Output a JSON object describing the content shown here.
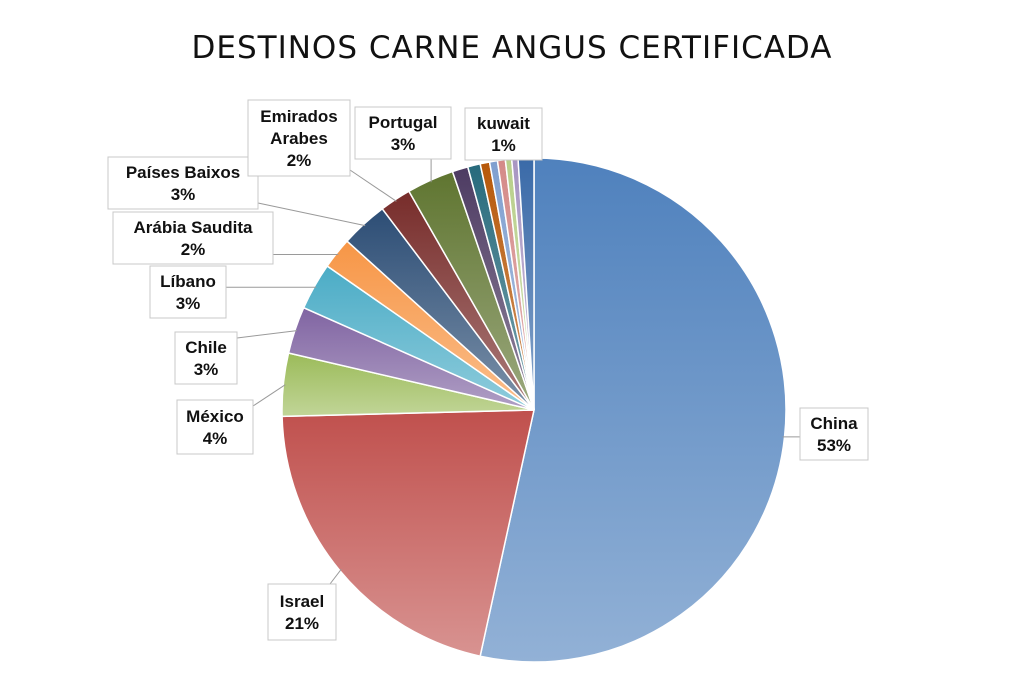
{
  "chart_data": {
    "type": "pie",
    "title": "DESTINOS CARNE ANGUS CERTIFICADA",
    "slices": [
      {
        "name": "China",
        "value": 53,
        "label": "53%",
        "color": "#4f81bd"
      },
      {
        "name": "Israel",
        "value": 21,
        "label": "21%",
        "color": "#c0504d"
      },
      {
        "name": "México",
        "value": 4,
        "label": "4%",
        "color": "#9bbb59"
      },
      {
        "name": "Chile",
        "value": 3,
        "label": "3%",
        "color": "#8064a2"
      },
      {
        "name": "Líbano",
        "value": 3,
        "label": "3%",
        "color": "#4bacc6"
      },
      {
        "name": "Arábia Saudita",
        "value": 2,
        "label": "2%",
        "color": "#f79646"
      },
      {
        "name": "Países Baixos",
        "value": 3,
        "label": "3%",
        "color": "#2c4d75"
      },
      {
        "name": "Emirados Arabes",
        "value": 2,
        "label": "2%",
        "color": "#772c2a"
      },
      {
        "name": "Portugal",
        "value": 3,
        "label": "3%",
        "color": "#5f7530"
      },
      {
        "name": "",
        "value": 1,
        "label": "",
        "color": "#4d3b62"
      },
      {
        "name": "",
        "value": 0.8,
        "label": "",
        "color": "#276a7c"
      },
      {
        "name": "",
        "value": 0.6,
        "label": "",
        "color": "#b65708"
      },
      {
        "name": "",
        "value": 0.5,
        "label": "",
        "color": "#7f9fcf"
      },
      {
        "name": "",
        "value": 0.5,
        "label": "",
        "color": "#d48a88"
      },
      {
        "name": "",
        "value": 0.4,
        "label": "",
        "color": "#b8cf8a"
      },
      {
        "name": "",
        "value": 0.4,
        "label": "",
        "color": "#a896c2"
      },
      {
        "name": "kuwait",
        "value": 1,
        "label": "1%",
        "color": "#3a6aa8"
      }
    ]
  }
}
